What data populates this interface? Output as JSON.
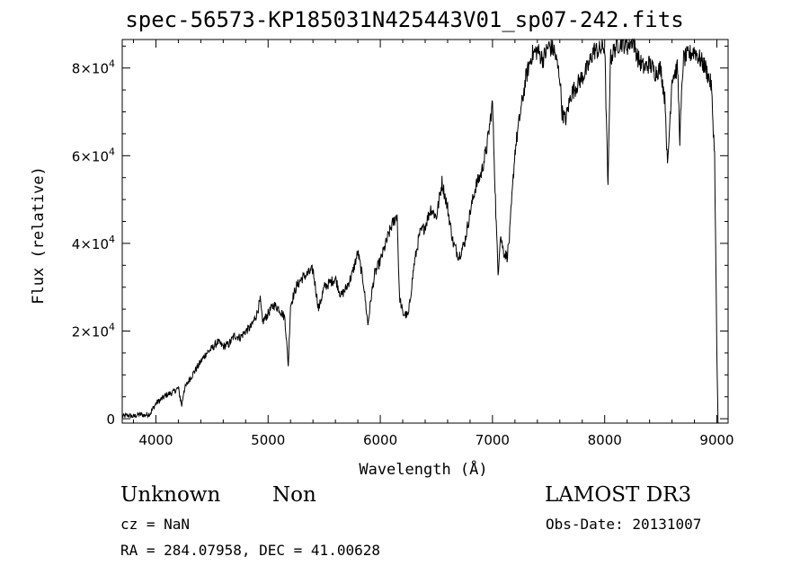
{
  "chart_data": {
    "type": "line",
    "title": "spec-56573-KP185031N425443V01_sp07-242.fits",
    "xlabel": "Wavelength (Å)",
    "ylabel": "Flux (relative)",
    "xlim": [
      3700,
      9100
    ],
    "ylim": [
      -1000,
      86500
    ],
    "x_ticks": [
      4000,
      5000,
      6000,
      7000,
      8000,
      9000
    ],
    "x_tick_labels": [
      "4000",
      "5000",
      "6000",
      "7000",
      "8000",
      "9000"
    ],
    "y_ticks": [
      0,
      20000,
      40000,
      60000,
      80000
    ],
    "y_tick_labels": [
      {
        "base": "0",
        "exp": ""
      },
      {
        "base": "2×10",
        "exp": "4"
      },
      {
        "base": "4×10",
        "exp": "4"
      },
      {
        "base": "6×10",
        "exp": "4"
      },
      {
        "base": "8×10",
        "exp": "4"
      }
    ],
    "series": [
      {
        "x": [
          3700,
          3750,
          3800,
          3850,
          3900,
          3950,
          4000,
          4050,
          4100,
          4150,
          4200,
          4230,
          4250,
          4300,
          4350,
          4400,
          4450,
          4500,
          4550,
          4600,
          4650,
          4700,
          4750,
          4800,
          4850,
          4900,
          4930,
          4950,
          5000,
          5050,
          5100,
          5150,
          5180,
          5200,
          5250,
          5300,
          5350,
          5400,
          5450,
          5500,
          5550,
          5600,
          5650,
          5700,
          5750,
          5800,
          5850,
          5890,
          5920,
          5950,
          6000,
          6050,
          6100,
          6150,
          6170,
          6200,
          6250,
          6300,
          6350,
          6400,
          6450,
          6500,
          6550,
          6600,
          6650,
          6700,
          6750,
          6800,
          6850,
          6900,
          6950,
          7000,
          7030,
          7050,
          7070,
          7100,
          7130,
          7150,
          7200,
          7250,
          7300,
          7350,
          7400,
          7450,
          7500,
          7550,
          7600,
          7620,
          7650,
          7700,
          7750,
          7800,
          7850,
          7900,
          7950,
          8000,
          8030,
          8050,
          8100,
          8150,
          8200,
          8250,
          8300,
          8350,
          8400,
          8450,
          8500,
          8540,
          8560,
          8600,
          8650,
          8670,
          8700,
          8750,
          8800,
          8850,
          8900,
          8950,
          8980,
          9000,
          9010
        ],
        "y": [
          500,
          800,
          500,
          1000,
          800,
          1200,
          3500,
          4500,
          5500,
          6000,
          7000,
          3000,
          6500,
          9000,
          11000,
          13000,
          15000,
          16000,
          17500,
          16500,
          17000,
          19000,
          18500,
          20000,
          21000,
          24000,
          27000,
          22000,
          24000,
          26000,
          25000,
          23000,
          12000,
          26000,
          30000,
          32000,
          33000,
          34000,
          25000,
          30000,
          31000,
          32000,
          28000,
          30000,
          33000,
          38000,
          31000,
          21500,
          28000,
          33000,
          36000,
          40000,
          44000,
          46500,
          28000,
          24000,
          23500,
          35000,
          42000,
          44000,
          48000,
          46000,
          54000,
          48000,
          40000,
          37000,
          40000,
          47000,
          53000,
          56000,
          62000,
          72000,
          47000,
          33000,
          42000,
          38000,
          37000,
          41000,
          61000,
          70000,
          78000,
          83000,
          84000,
          82000,
          85000,
          84000,
          78000,
          70000,
          68000,
          74000,
          76000,
          78000,
          80000,
          84000,
          84000,
          85000,
          52000,
          82000,
          85000,
          86000,
          85000,
          86500,
          82000,
          80000,
          81000,
          79000,
          80000,
          72000,
          57000,
          78000,
          80000,
          64000,
          82000,
          83000,
          84000,
          82000,
          80000,
          76000,
          60000,
          15000,
          -1000
        ]
      }
    ]
  },
  "info": {
    "object_class": "Unknown",
    "object_subclass": "Non",
    "survey": "LAMOST DR3",
    "redshift_line": "cz = NaN",
    "obs_date_line": "Obs-Date: 20131007",
    "coords_line": "RA = 284.07958, DEC =  41.00628"
  }
}
